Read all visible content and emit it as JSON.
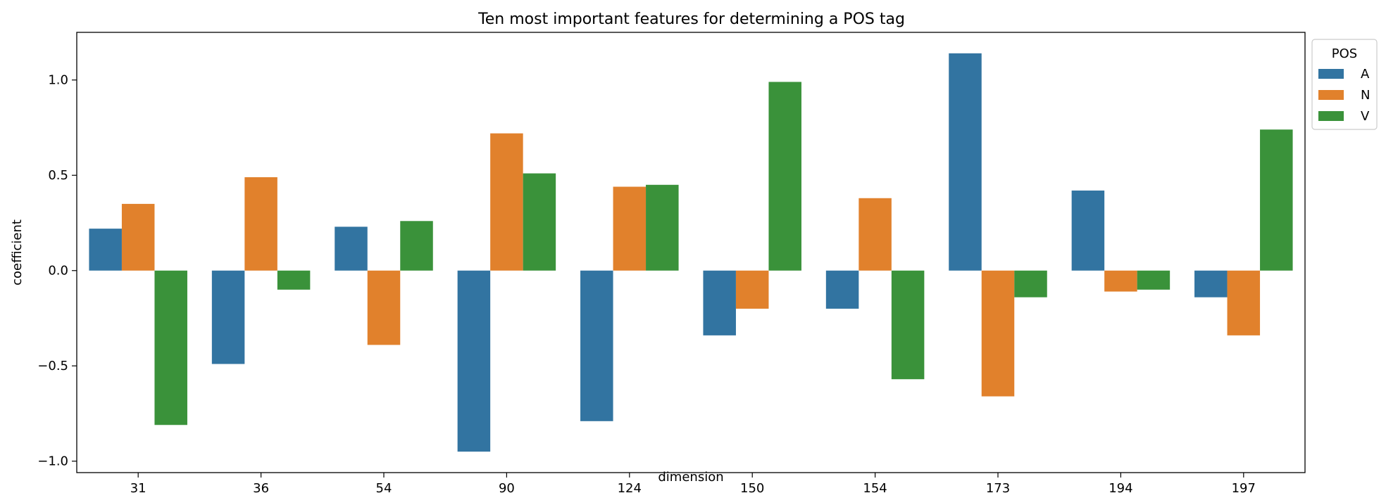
{
  "chart_data": {
    "type": "bar",
    "title": "Ten most important features for determining a POS tag",
    "xlabel": "dimension",
    "ylabel": "coefficient",
    "categories": [
      "31",
      "36",
      "54",
      "90",
      "124",
      "150",
      "154",
      "173",
      "194",
      "197"
    ],
    "ylim": [
      -1.06,
      1.25
    ],
    "yticks": [
      -1.0,
      -0.5,
      0.0,
      0.5,
      1.0
    ],
    "ytick_labels": [
      "−1.0",
      "−0.5",
      "0.0",
      "0.5",
      "1.0"
    ],
    "grid": false,
    "legend": {
      "title": "POS",
      "placement": "upper-right-outside"
    },
    "series": [
      {
        "name": "A",
        "color": "#3274a1",
        "values": [
          0.22,
          -0.49,
          0.23,
          -0.95,
          -0.79,
          -0.34,
          -0.2,
          1.14,
          0.42,
          -0.14
        ]
      },
      {
        "name": "N",
        "color": "#e1812c",
        "values": [
          0.35,
          0.49,
          -0.39,
          0.72,
          0.44,
          -0.2,
          0.38,
          -0.66,
          -0.11,
          -0.34
        ]
      },
      {
        "name": "V",
        "color": "#3a923a",
        "values": [
          -0.81,
          -0.1,
          0.26,
          0.51,
          0.45,
          0.99,
          -0.57,
          -0.14,
          -0.1,
          0.74
        ]
      }
    ]
  }
}
